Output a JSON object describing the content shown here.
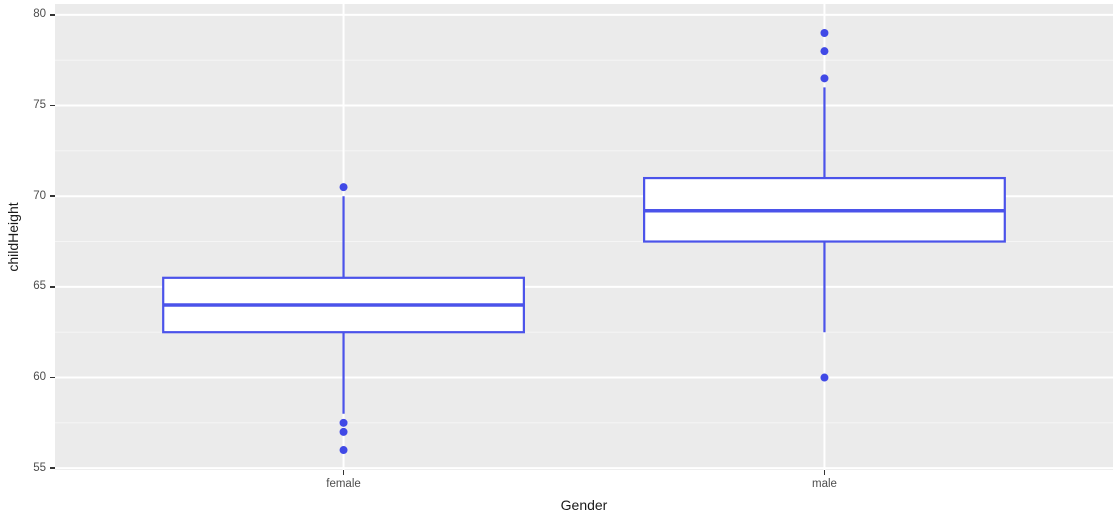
{
  "chart_data": {
    "type": "boxplot",
    "title": "",
    "xlabel": "Gender",
    "ylabel": "childHeight",
    "categories": [
      "female",
      "male"
    ],
    "y_axis": {
      "label": "childHeight",
      "major_ticks": [
        55,
        60,
        65,
        70,
        75,
        80
      ],
      "minor_ticks": [
        57.5,
        62.5,
        67.5,
        72.5,
        77.5
      ],
      "render_min": 54.9,
      "render_max": 80.6,
      "ylim": [
        55,
        80
      ]
    },
    "x_axis": {
      "label": "Gender",
      "tick_labels": [
        "female",
        "male"
      ]
    },
    "series": [
      {
        "category": "female",
        "whisker_low": 58,
        "q1": 62.5,
        "median": 64,
        "q3": 65.5,
        "whisker_high": 70,
        "outliers": [
          70.5,
          57.5,
          57,
          56
        ]
      },
      {
        "category": "male",
        "whisker_low": 62.5,
        "q1": 67.5,
        "median": 69.2,
        "q3": 71,
        "whisker_high": 76,
        "outliers": [
          79,
          78,
          76.5,
          60
        ]
      }
    ],
    "legend": "none",
    "grid": "major and minor horizontal, major vertical per category",
    "colors": {
      "box_stroke": "#4b53ea",
      "box_fill": "#ffffff",
      "outlier_fill": "#4049e6",
      "panel_bg": "#ebebeb",
      "grid_major": "#ffffff",
      "grid_minor": "#f5f5f5",
      "tick_label": "#4d4d4d",
      "axis_title": "#1a1a1a",
      "tick_mark": "#333333",
      "background": "#ffffff"
    }
  }
}
